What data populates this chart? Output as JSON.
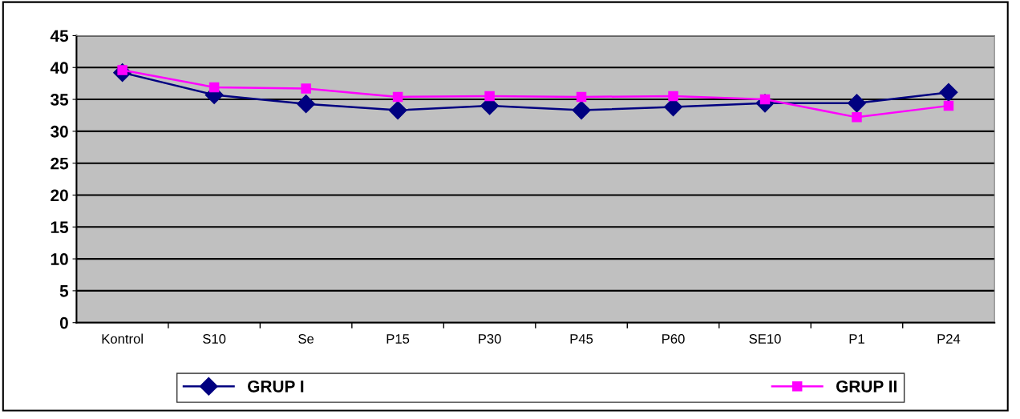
{
  "chart_data": {
    "type": "line",
    "categories": [
      "Kontrol",
      "S10",
      "Se",
      "P15",
      "P30",
      "P45",
      "P60",
      "SE10",
      "P1",
      "P24"
    ],
    "series": [
      {
        "name": "GRUP I",
        "color": "#000080",
        "marker": "diamond",
        "values": [
          39.2,
          35.7,
          34.3,
          33.3,
          34.0,
          33.3,
          33.8,
          34.4,
          34.4,
          36.1
        ]
      },
      {
        "name": "GRUP II",
        "color": "#ff00ff",
        "marker": "square",
        "values": [
          39.6,
          36.9,
          36.7,
          35.4,
          35.5,
          35.4,
          35.5,
          35.0,
          32.2,
          34.0
        ]
      }
    ],
    "ylim": [
      0,
      45
    ],
    "yticks": [
      0,
      5,
      10,
      15,
      20,
      25,
      30,
      35,
      40,
      45
    ],
    "grid": "y",
    "legend": "bottom",
    "line_style": "solid"
  }
}
